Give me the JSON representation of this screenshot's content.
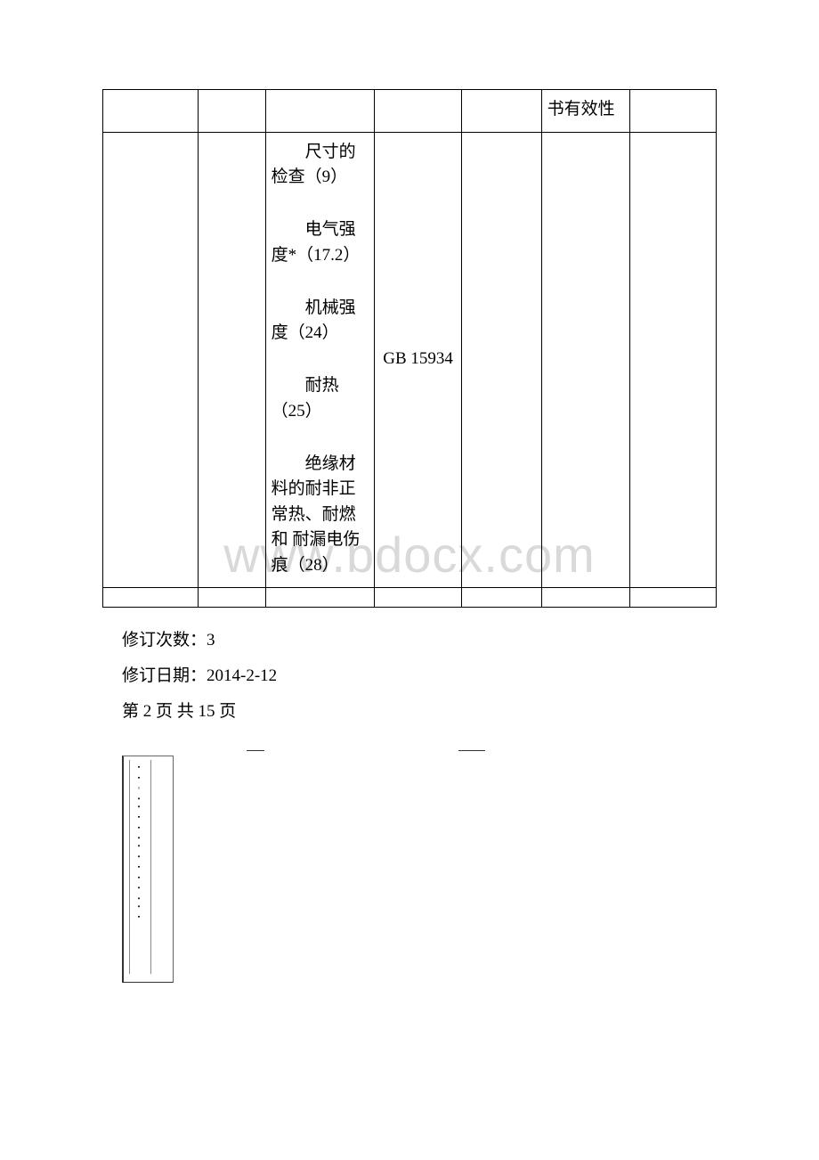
{
  "watermark": "www.bdocx.com",
  "table": {
    "row1": {
      "col6": "书有效性"
    },
    "row2": {
      "col3_items": [
        "尺寸的检查（9）",
        "电气强度*（17.2）",
        "机械强度（24）",
        "耐热（25）",
        "绝缘材料的耐非正常热、耐燃和 耐漏电伤痕（28）"
      ],
      "col4": "GB 15934"
    }
  },
  "metadata": {
    "revision_count_label": "修订次数：",
    "revision_count": "3",
    "revision_date_label": "修订日期：",
    "revision_date": "2014-2-12",
    "page_info": "第 2 页 共 15 页"
  },
  "colors": {
    "border": "#000000",
    "text": "#000000",
    "background": "#ffffff",
    "watermark": "#d9d9d9"
  },
  "typography": {
    "body_fontsize": 19,
    "watermark_fontsize": 56
  }
}
